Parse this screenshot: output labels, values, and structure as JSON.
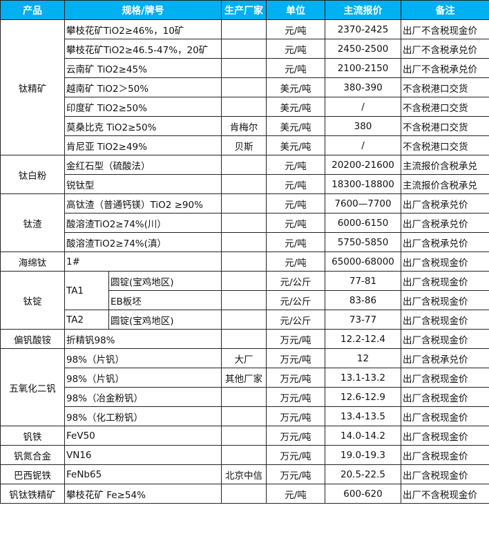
{
  "header_color": "#00B0F0",
  "headers": [
    "产品",
    "规格/牌号",
    "生产厂家",
    "单位",
    "主流报价",
    "备注"
  ],
  "groups": [
    {
      "product": "钛精矿",
      "rows": [
        {
          "spec": "攀枝花矿TiO2≥46%，10矿",
          "maker": "",
          "unit": "元/吨",
          "price": "2370-2425",
          "note": "出厂不含税现金价"
        },
        {
          "spec": "攀枝花矿TiO2≥46.5-47%，20矿",
          "maker": "",
          "unit": "元/吨",
          "price": "2450-2500",
          "note": "出厂不含税承兑价"
        },
        {
          "spec": "云南矿 TiO2≥45%",
          "maker": "",
          "unit": "元/吨",
          "price": "2100-2150",
          "note": "出厂不含税承兑价"
        },
        {
          "spec": "越南矿 TiO2＞50%",
          "maker": "",
          "unit": "美元/吨",
          "price": "380-390",
          "note": "不含税港口交货"
        },
        {
          "spec": "印度矿 TiO2≥50%",
          "maker": "",
          "unit": "美元/吨",
          "price": "/",
          "note": "不含税港口交货"
        },
        {
          "spec": "莫桑比克 TiO2≥50%",
          "maker": "肯梅尔",
          "unit": "美元/吨",
          "price": "380",
          "note": "不含税港口交货"
        },
        {
          "spec": "肯尼亚 TiO2≥49%",
          "maker": "贝斯",
          "unit": "美元/吨",
          "price": "/",
          "note": "不含税港口交货"
        }
      ]
    },
    {
      "product": "钛白粉",
      "rows": [
        {
          "spec": "金红石型（硫酸法）",
          "maker": "",
          "unit": "元/吨",
          "price": "20200-21600",
          "note": "主流报价含税承兑"
        },
        {
          "spec": "锐钛型",
          "maker": "",
          "unit": "元/吨",
          "price": "18300-18800",
          "note": "主流报价含税承兑"
        }
      ]
    },
    {
      "product": "钛渣",
      "rows": [
        {
          "spec": "高钛渣（普通钙镁）TiO2 ≥90%",
          "maker": "",
          "unit": "元/吨",
          "price": "7600—7700",
          "note": "出厂含税承兑价"
        },
        {
          "spec": "酸溶渣TiO2≥74%(川）",
          "maker": "",
          "unit": "元/吨",
          "price": "6000-6150",
          "note": "出厂含税承兑价"
        },
        {
          "spec": "酸溶渣TiO2≥74%(滇）",
          "maker": "",
          "unit": "元/吨",
          "price": "5750-5850",
          "note": "出厂含税承兑价"
        }
      ]
    },
    {
      "product": "海绵钛",
      "rows": [
        {
          "spec": "1#",
          "maker": "",
          "unit": "元/吨",
          "price": "65000-68000",
          "note": "出厂含税现金价"
        }
      ]
    },
    {
      "product": "钛锭",
      "rows": [
        {
          "grade": "TA1",
          "form": "圆锭(宝鸡地区)",
          "maker": "",
          "unit": "元/公斤",
          "price": "77-81",
          "note": "出厂含税现金价"
        },
        {
          "grade": "TA1",
          "form": "EB板坯",
          "maker": "",
          "unit": "元/公斤",
          "price": "83-86",
          "note": "出厂含税现金价"
        },
        {
          "grade": "TA2",
          "form": "圆锭(宝鸡地区)",
          "maker": "",
          "unit": "元/公斤",
          "price": "73-77",
          "note": "出厂含税现金价"
        }
      ]
    },
    {
      "product": "偏钒酸铵",
      "rows": [
        {
          "spec": "折精钒98%",
          "maker": "",
          "unit": "万元/吨",
          "price": "12.2-12.4",
          "note": "出厂含税现金价"
        }
      ]
    },
    {
      "product": "五氧化二钒",
      "rows": [
        {
          "spec": "98%（片钒）",
          "maker": "大厂",
          "unit": "万元/吨",
          "price": "12",
          "note": "出厂含税承兑价"
        },
        {
          "spec": "98%（片钒）",
          "maker": "其他厂家",
          "unit": "万元/吨",
          "price": "13.1-13.2",
          "note": "出厂含税现金价"
        },
        {
          "spec": "98%（冶金粉钒）",
          "maker": "",
          "unit": "万元/吨",
          "price": "12.6-12.9",
          "note": "出厂含税现金价"
        },
        {
          "spec": "98%（化工粉钒）",
          "maker": "",
          "unit": "万元/吨",
          "price": "13.4-13.5",
          "note": "出厂含税现金价"
        }
      ]
    },
    {
      "product": "钒铁",
      "rows": [
        {
          "spec": "FeV50",
          "maker": "",
          "unit": "万元/吨",
          "price": "14.0-14.2",
          "note": "出厂含税现金价"
        }
      ]
    },
    {
      "product": "钒氮合金",
      "rows": [
        {
          "spec": "VN16",
          "maker": "",
          "unit": "万元/吨",
          "price": "19.0-19.3",
          "note": "出厂含税现金价"
        }
      ]
    },
    {
      "product": "巴西铌铁",
      "rows": [
        {
          "spec": "FeNb65",
          "maker": "北京中信",
          "unit": "万元/吨",
          "price": "20.5-22.5",
          "note": "出厂含税现金价"
        }
      ]
    },
    {
      "product": "钒钛铁精矿",
      "rows": [
        {
          "spec": "攀枝花矿 Fe≥54%",
          "maker": "",
          "unit": "元/吨",
          "price": "600-620",
          "note": "出厂不含税现金价"
        }
      ]
    }
  ]
}
